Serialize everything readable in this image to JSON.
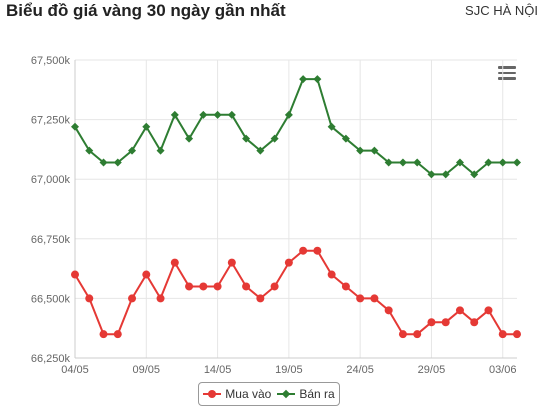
{
  "header": {
    "title": "Biểu đồ giá vàng 30 ngày gần nhất",
    "location": "SJC HÀ NỘI"
  },
  "menu": {
    "icon": "hamburger-menu-icon"
  },
  "colors": {
    "buy": "#e53935",
    "sell": "#2e7d32",
    "grid": "#e6e6e6"
  },
  "chart_data": {
    "type": "line",
    "title": "",
    "xlabel": "",
    "ylabel": "",
    "x_tick_labels": [
      "04/05",
      "09/05",
      "14/05",
      "19/05",
      "24/05",
      "29/05",
      "03/06"
    ],
    "x_tick_positions": [
      0,
      5,
      10,
      15,
      20,
      25,
      30
    ],
    "y_tick_labels": [
      "66,250k",
      "66,500k",
      "66,750k",
      "67,000k",
      "67,250k",
      "67,500k"
    ],
    "y_ticks": [
      66250,
      66500,
      66750,
      67000,
      67250,
      67500
    ],
    "ylim": [
      66250,
      67500
    ],
    "grid": true,
    "legend_position": "bottom",
    "series": [
      {
        "name": "Mua vào",
        "marker": "circle",
        "values": [
          66600,
          66500,
          66350,
          66350,
          66500,
          66600,
          66500,
          66650,
          66550,
          66550,
          66550,
          66650,
          66550,
          66500,
          66550,
          66650,
          66700,
          66700,
          66600,
          66550,
          66500,
          66500,
          66450,
          66350,
          66350,
          66400,
          66400,
          66450,
          66400,
          66450,
          66350,
          66350
        ]
      },
      {
        "name": "Bán ra",
        "marker": "diamond",
        "values": [
          67220,
          67120,
          67070,
          67070,
          67120,
          67220,
          67120,
          67270,
          67170,
          67270,
          67270,
          67270,
          67170,
          67120,
          67170,
          67270,
          67420,
          67420,
          67220,
          67170,
          67120,
          67120,
          67070,
          67070,
          67070,
          67020,
          67020,
          67070,
          67020,
          67070,
          67070,
          67070
        ]
      }
    ]
  }
}
